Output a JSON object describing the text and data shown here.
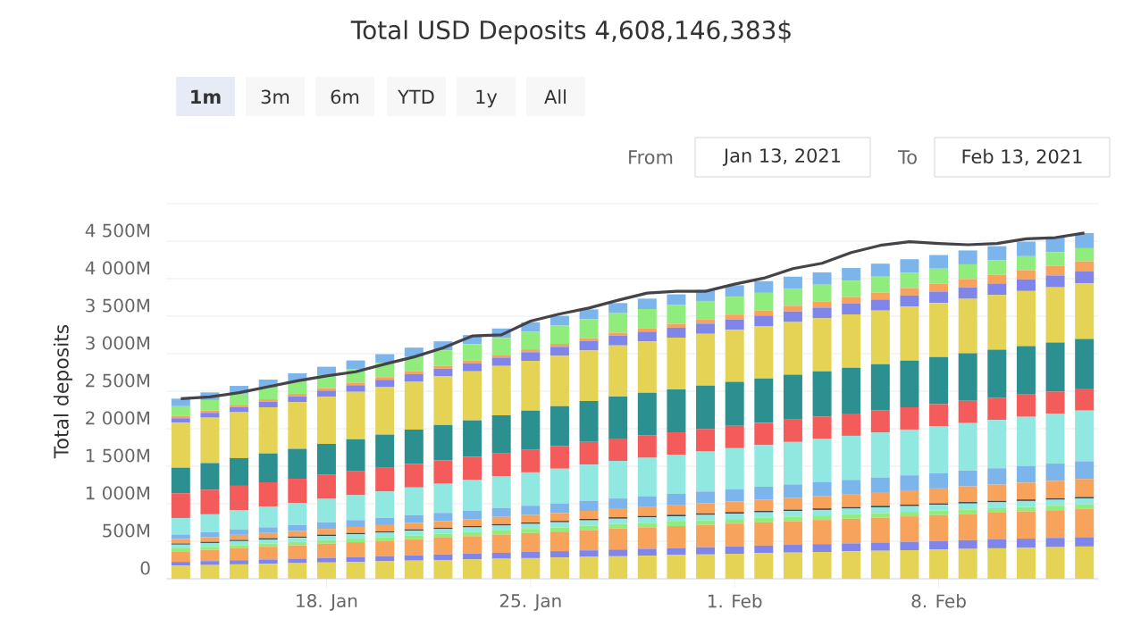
{
  "chart_data": {
    "type": "bar",
    "stacked": true,
    "title": "Total USD Deposits 4,608,146,383$",
    "ylabel": "Total deposits",
    "annotations": [
      "1m",
      "3m",
      "6m",
      "YTD",
      "1y",
      "All",
      "From",
      "Jan 13, 2021",
      "To",
      "Feb 13, 2021"
    ],
    "categories": [
      null,
      null,
      null,
      null,
      null,
      "18. Jan",
      null,
      null,
      null,
      null,
      null,
      null,
      "25. Jan",
      null,
      null,
      null,
      null,
      null,
      null,
      "1. Feb",
      null,
      null,
      null,
      null,
      null,
      null,
      "8. Feb",
      null,
      null,
      null,
      null,
      null
    ],
    "ylim": [
      0,
      5000
    ],
    "yticks": [
      0,
      {
        "value": 500,
        "label": "500M"
      },
      {
        "value": 1000,
        "label": "1 000M"
      },
      {
        "value": 1500,
        "label": "1 500M"
      },
      {
        "value": 2000,
        "label": "2 000M"
      },
      {
        "value": 2500,
        "label": "2 500M"
      },
      {
        "value": 3000,
        "label": "3 000M"
      },
      {
        "value": 3500,
        "label": "3 500M"
      },
      {
        "value": 4000,
        "label": "4 000M"
      },
      {
        "value": 4500,
        "label": "4 500M"
      },
      {
        "value": 5000,
        "label": null
      }
    ],
    "grid": "y",
    "series": [
      {
        "color": "#e4d354",
        "values": [
          175,
          183,
          192,
          200,
          208,
          217,
          225,
          233,
          242,
          250,
          258,
          267,
          275,
          283,
          292,
          300,
          308,
          316,
          324,
          333,
          341,
          349,
          357,
          365,
          373,
          381,
          389,
          398,
          406,
          414,
          422,
          430
        ]
      },
      {
        "color": "#8085e9",
        "values": [
          50,
          53,
          55,
          58,
          61,
          63,
          66,
          69,
          71,
          74,
          77,
          79,
          82,
          85,
          87,
          90,
          92,
          94,
          97,
          99,
          101,
          103,
          105,
          107,
          110,
          112,
          114,
          116,
          118,
          121,
          123,
          125
        ]
      },
      {
        "color": "#f7a35c",
        "values": [
          140,
          149,
          159,
          168,
          177,
          187,
          196,
          205,
          215,
          224,
          233,
          243,
          252,
          261,
          271,
          280,
          286,
          292,
          298,
          304,
          310,
          316,
          322,
          328,
          333,
          339,
          345,
          351,
          357,
          363,
          369,
          375
        ]
      },
      {
        "color": "#90ed7d",
        "values": [
          40,
          41,
          43,
          44,
          45,
          47,
          48,
          49,
          51,
          52,
          53,
          55,
          56,
          57,
          59,
          60,
          60,
          60,
          60,
          60,
          60,
          60,
          60,
          60,
          60,
          60,
          60,
          60,
          60,
          60,
          60,
          60
        ]
      },
      {
        "color": "#91e8e1",
        "values": [
          50,
          51,
          53,
          54,
          55,
          57,
          58,
          59,
          61,
          62,
          63,
          65,
          66,
          67,
          69,
          70,
          71,
          71,
          72,
          73,
          73,
          74,
          74,
          75,
          76,
          76,
          77,
          78,
          78,
          79,
          79,
          80
        ]
      },
      {
        "color": "#434348",
        "values": [
          15,
          15,
          16,
          16,
          16,
          17,
          17,
          17,
          18,
          18,
          18,
          19,
          19,
          19,
          20,
          20,
          20,
          20,
          20,
          20,
          20,
          20,
          20,
          20,
          20,
          20,
          20,
          20,
          20,
          20,
          20,
          20
        ]
      },
      {
        "color": "#f7a35c",
        "values": [
          60,
          63,
          67,
          70,
          73,
          77,
          80,
          83,
          87,
          90,
          93,
          97,
          100,
          103,
          107,
          110,
          118,
          126,
          134,
          143,
          151,
          159,
          167,
          175,
          183,
          191,
          199,
          208,
          216,
          224,
          232,
          240
        ]
      },
      {
        "color": "#7cb5ec",
        "values": [
          60,
          65,
          71,
          76,
          81,
          87,
          92,
          97,
          103,
          108,
          113,
          119,
          124,
          129,
          135,
          140,
          146,
          152,
          158,
          164,
          170,
          176,
          182,
          188,
          194,
          200,
          206,
          212,
          218,
          224,
          230,
          236
        ]
      },
      {
        "color": "#91e8e1",
        "values": [
          220,
          239,
          257,
          276,
          295,
          313,
          332,
          351,
          369,
          388,
          407,
          425,
          444,
          463,
          481,
          500,
          511,
          522,
          533,
          544,
          555,
          566,
          577,
          588,
          599,
          610,
          621,
          632,
          643,
          654,
          665,
          676
        ]
      },
      {
        "color": "#f45b5b",
        "values": [
          330,
          328,
          326,
          324,
          322,
          320,
          318,
          316,
          314,
          312,
          310,
          308,
          306,
          304,
          302,
          300,
          300,
          299,
          299,
          299,
          298,
          298,
          298,
          297,
          297,
          297,
          296,
          296,
          296,
          295,
          295,
          294
        ]
      },
      {
        "color": "#2b908f",
        "values": [
          340,
          355,
          369,
          384,
          399,
          413,
          428,
          443,
          457,
          472,
          487,
          501,
          516,
          531,
          545,
          560,
          566,
          573,
          579,
          585,
          591,
          598,
          604,
          610,
          616,
          623,
          629,
          635,
          641,
          648,
          654,
          660
        ]
      },
      {
        "color": "#e4d354",
        "values": [
          600,
          605,
          611,
          616,
          621,
          627,
          632,
          637,
          643,
          648,
          653,
          659,
          664,
          669,
          675,
          680,
          684,
          688,
          691,
          695,
          699,
          703,
          706,
          710,
          714,
          718,
          721,
          725,
          729,
          733,
          736,
          740
        ]
      },
      {
        "color": "#8085e9",
        "values": [
          60,
          65,
          69,
          74,
          79,
          83,
          88,
          93,
          97,
          102,
          107,
          111,
          116,
          121,
          125,
          130,
          132,
          134,
          136,
          138,
          139,
          141,
          143,
          145,
          147,
          149,
          151,
          153,
          154,
          156,
          158,
          160
        ]
      },
      {
        "color": "#f7a35c",
        "values": [
          30,
          31,
          31,
          32,
          33,
          33,
          34,
          35,
          35,
          36,
          37,
          37,
          38,
          39,
          39,
          40,
          46,
          52,
          58,
          64,
          70,
          76,
          82,
          88,
          93,
          99,
          105,
          111,
          117,
          123,
          129,
          135
        ]
      },
      {
        "color": "#90ed7d",
        "values": [
          130,
          139,
          147,
          156,
          165,
          173,
          182,
          191,
          199,
          208,
          217,
          225,
          234,
          243,
          251,
          260,
          255,
          249,
          244,
          239,
          233,
          228,
          223,
          218,
          212,
          207,
          201,
          196,
          191,
          186,
          180,
          175
        ]
      },
      {
        "color": "#7cb5ec",
        "values": [
          100,
          102,
          105,
          107,
          109,
          112,
          114,
          116,
          119,
          121,
          123,
          126,
          128,
          130,
          133,
          135,
          139,
          143,
          148,
          152,
          156,
          160,
          164,
          168,
          173,
          177,
          181,
          185,
          189,
          194,
          198,
          202
        ]
      },
      {
        "type": "line",
        "color": "#434348",
        "values": [
          2401,
          2425,
          2480,
          2560,
          2639,
          2703,
          2759,
          2862,
          2957,
          3077,
          3236,
          3252,
          3434,
          3530,
          3609,
          3713,
          3808,
          3832,
          3832,
          3927,
          4007,
          4134,
          4206,
          4349,
          4444,
          4492,
          4468,
          4452,
          4468,
          4532,
          4547,
          4608
        ]
      }
    ]
  }
}
